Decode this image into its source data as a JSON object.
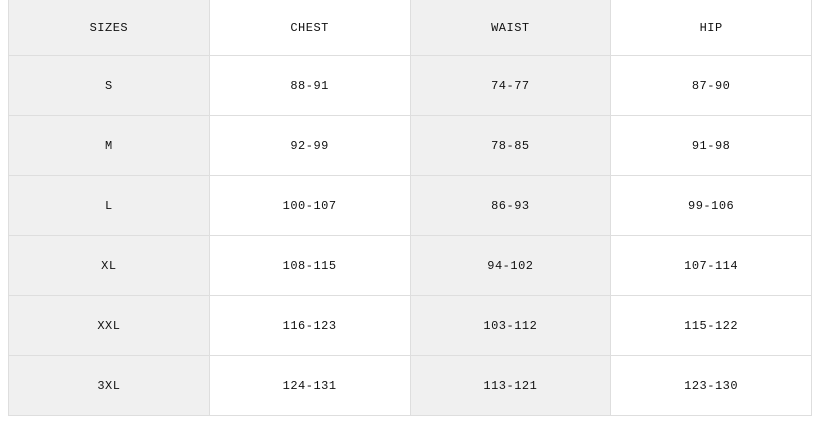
{
  "table": {
    "headers": [
      "SIZES",
      "CHEST",
      "WAIST",
      "HIP"
    ],
    "rows": [
      [
        "S",
        "88-91",
        "74-77",
        "87-90"
      ],
      [
        "M",
        "92-99",
        "78-85",
        "91-98"
      ],
      [
        "L",
        "100-107",
        "86-93",
        "99-106"
      ],
      [
        "XL",
        "108-115",
        "94-102",
        "107-114"
      ],
      [
        "XXL",
        "116-123",
        "103-112",
        "115-122"
      ],
      [
        "3XL",
        "124-131",
        "113-121",
        "123-130"
      ]
    ]
  }
}
